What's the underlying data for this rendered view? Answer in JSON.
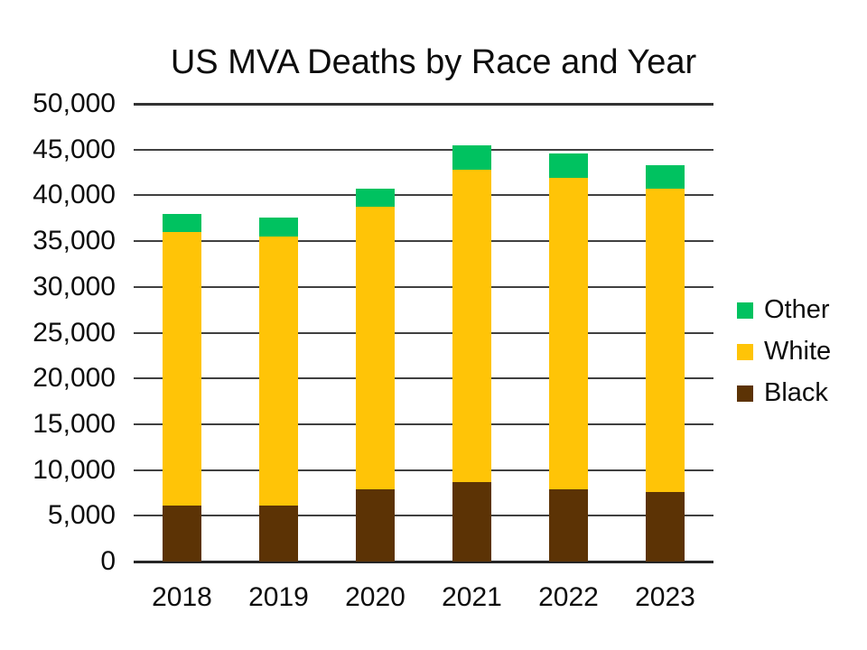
{
  "title": "US MVA Deaths by Race and Year",
  "chart_data": {
    "type": "bar",
    "stacked": true,
    "title": "US MVA Deaths by Race and Year",
    "categories": [
      "2018",
      "2019",
      "2020",
      "2021",
      "2022",
      "2023"
    ],
    "series": [
      {
        "name": "Black",
        "color": "#5C3305",
        "values": [
          6100,
          6100,
          7900,
          8700,
          7900,
          7600
        ]
      },
      {
        "name": "White",
        "color": "#FFC407",
        "values": [
          29900,
          29400,
          30850,
          34100,
          34000,
          33100
        ]
      },
      {
        "name": "Other",
        "color": "#00C260",
        "values": [
          2000,
          2100,
          2000,
          2650,
          2650,
          2600
        ]
      }
    ],
    "totals": [
      38000,
      37600,
      40750,
      45450,
      44550,
      43300
    ],
    "xlabel": "",
    "ylabel": "",
    "ylim": [
      0,
      50000
    ],
    "ytick_step": 5000,
    "ytick_labels": [
      "0",
      "5,000",
      "10,000",
      "15,000",
      "20,000",
      "25,000",
      "30,000",
      "35,000",
      "40,000",
      "45,000",
      "50,000"
    ],
    "grid": "horizontal",
    "legend_position": "right",
    "legend_order": [
      "Other",
      "White",
      "Black"
    ]
  },
  "colors": {
    "background": "#ffffff",
    "gridline": "#404040",
    "axis_line": "#262626",
    "text": "#0d0d0d"
  }
}
